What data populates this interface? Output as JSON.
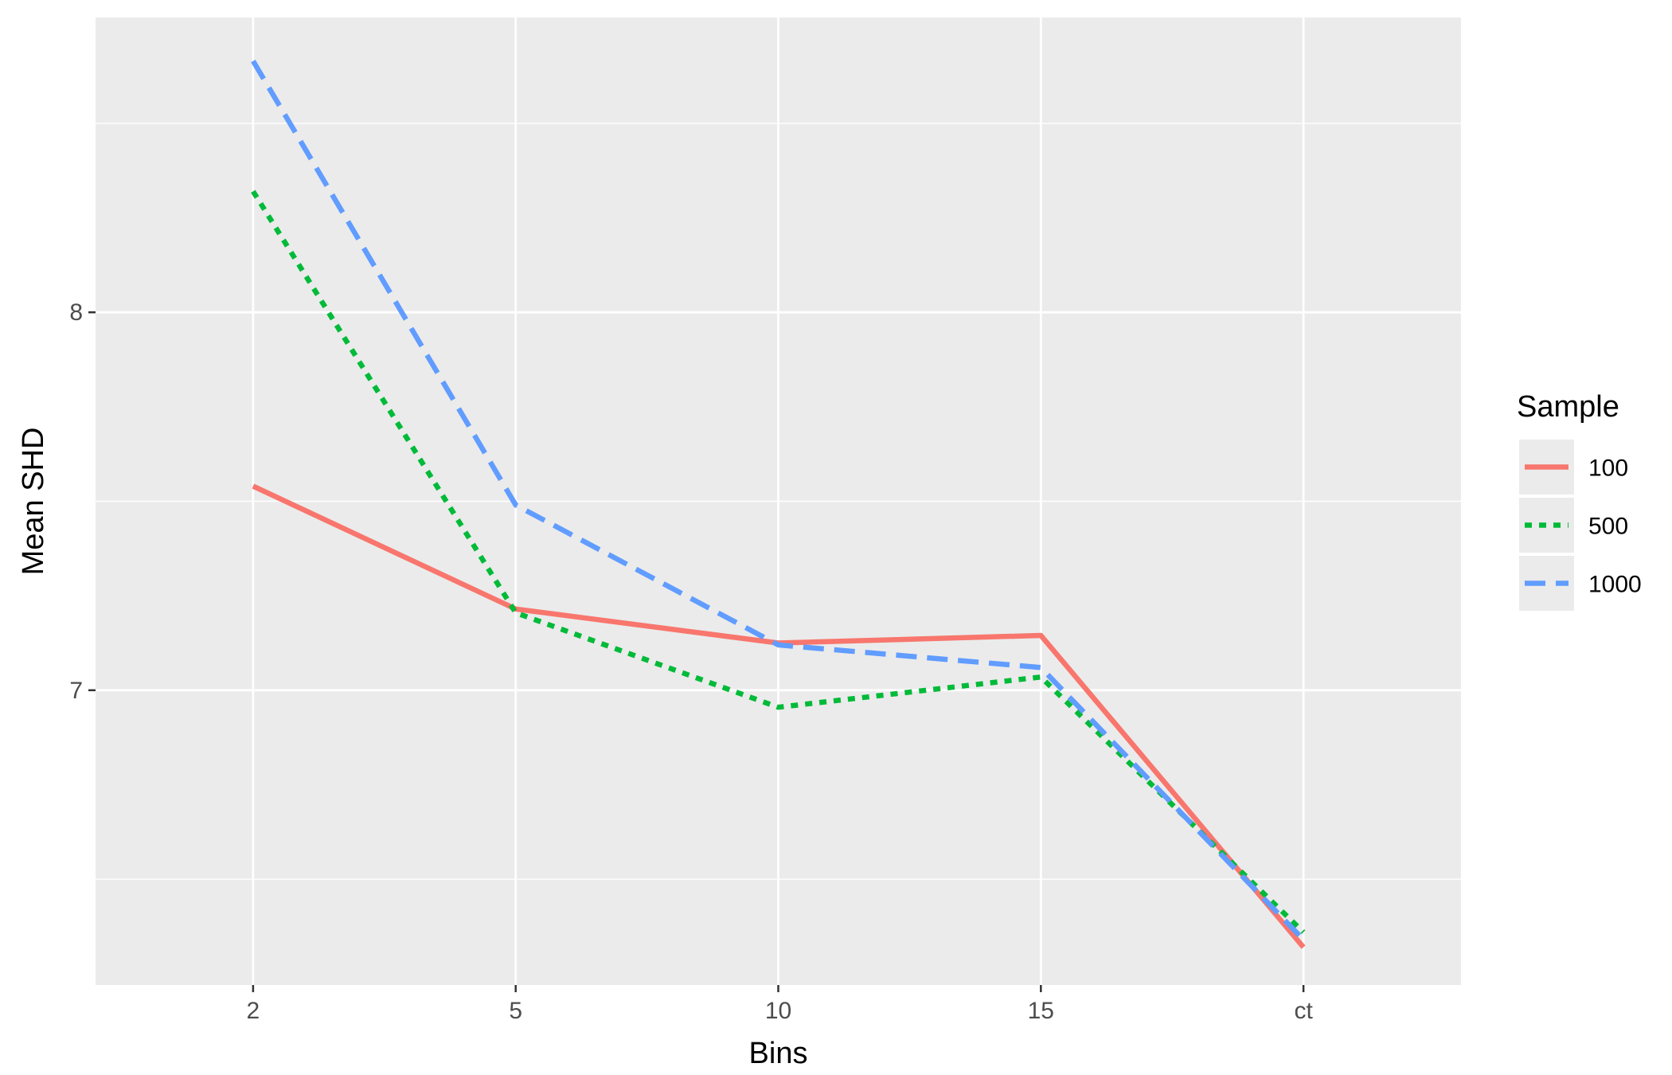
{
  "chart_data": {
    "type": "line",
    "title": "",
    "xlabel": "Bins",
    "ylabel": "Mean SHD",
    "categories": [
      "2",
      "5",
      "10",
      "15",
      "ct"
    ],
    "yticks": [
      7,
      8
    ],
    "ylim": [
      6.22,
      8.78
    ],
    "grid": true,
    "legend": {
      "title": "Sample",
      "position": "right"
    },
    "series": [
      {
        "name": "100",
        "values": [
          7.54,
          7.215,
          7.125,
          7.145,
          6.32
        ],
        "color": "#F8766D",
        "dash": "solid"
      },
      {
        "name": "500",
        "values": [
          8.32,
          7.205,
          6.955,
          7.035,
          6.36
        ],
        "color": "#00BA38",
        "dash": "dotted"
      },
      {
        "name": "1000",
        "values": [
          8.665,
          7.49,
          7.12,
          7.06,
          6.34
        ],
        "color": "#619CFF",
        "dash": "dashed"
      }
    ]
  }
}
